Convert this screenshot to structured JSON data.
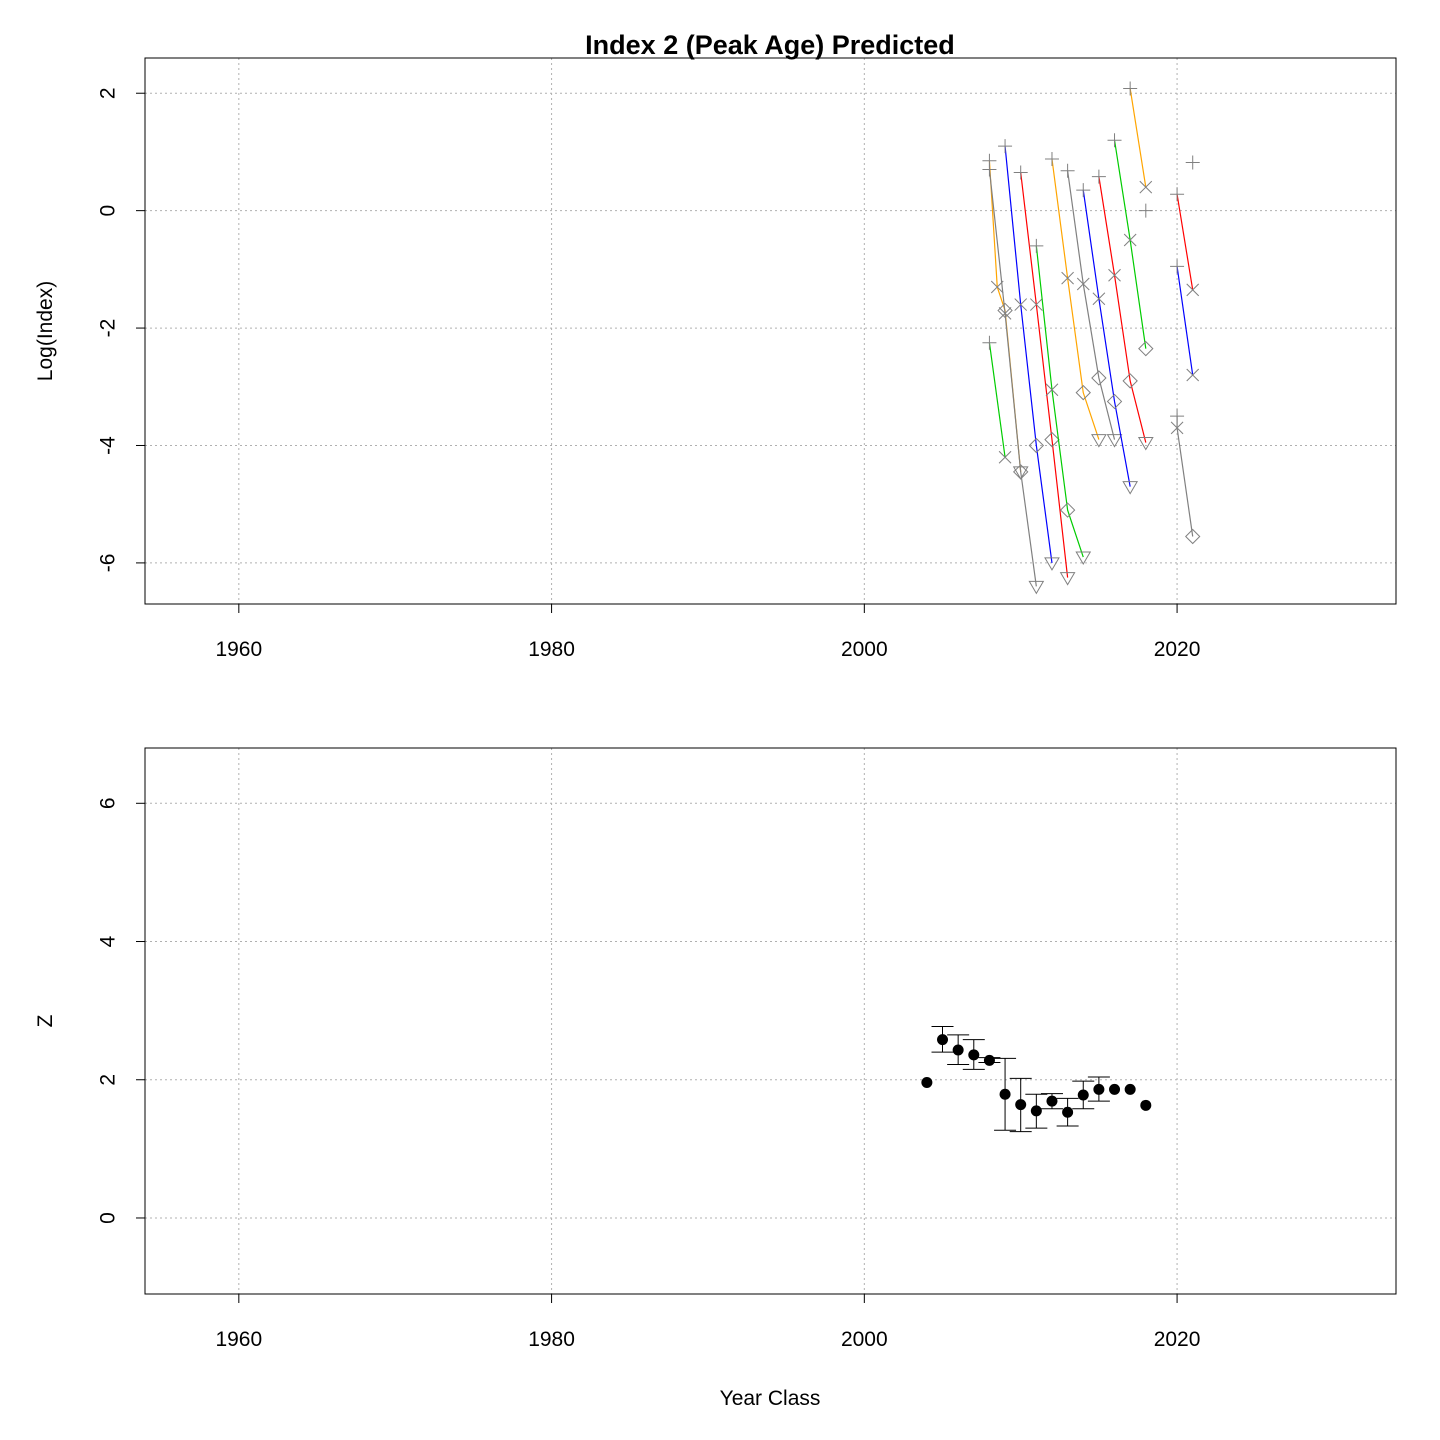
{
  "chart_data": [
    {
      "type": "line",
      "title": "Index 2 (Peak Age) Predicted",
      "xlabel": "",
      "ylabel": "Log(Index)",
      "xlim": [
        1954,
        2034
      ],
      "ylim": [
        -6.7,
        2.6
      ],
      "xticks": [
        1960,
        1980,
        2000,
        2020
      ],
      "yticks": [
        2,
        0,
        -2,
        -4,
        -6
      ],
      "grid": true,
      "marker_legend": [
        {
          "marker": "plus",
          "meaning": "first point of cohort"
        },
        {
          "marker": "x",
          "meaning": "second point"
        },
        {
          "marker": "diamond",
          "meaning": "third point"
        },
        {
          "marker": "triangle-down",
          "meaning": "fourth point"
        }
      ],
      "series": [
        {
          "color": "#FFA500",
          "points": [
            [
              2008,
              0.85
            ],
            [
              2008.5,
              -1.3
            ],
            [
              2009,
              -1.7
            ],
            [
              2010,
              -4.45
            ]
          ]
        },
        {
          "color": "#808080",
          "points": [
            [
              2008,
              0.7
            ],
            [
              2009,
              -1.75
            ],
            [
              2010,
              -4.45
            ],
            [
              2011,
              -6.4
            ]
          ]
        },
        {
          "color": "#00CC00",
          "points": [
            [
              2008,
              -2.25
            ],
            [
              2009,
              -4.2
            ]
          ]
        },
        {
          "color": "#0000FF",
          "points": [
            [
              2009,
              1.1
            ],
            [
              2010,
              -1.6
            ],
            [
              2011,
              -4.0
            ],
            [
              2012,
              -6.0
            ]
          ]
        },
        {
          "color": "#FF0000",
          "points": [
            [
              2010,
              0.65
            ],
            [
              2011,
              -1.6
            ],
            [
              2012,
              -3.9
            ],
            [
              2013,
              -6.25
            ]
          ]
        },
        {
          "color": "#00CC00",
          "points": [
            [
              2011,
              -0.6
            ],
            [
              2012,
              -3.05
            ],
            [
              2013,
              -5.1
            ],
            [
              2014,
              -5.9
            ]
          ]
        },
        {
          "color": "#FFA500",
          "points": [
            [
              2012,
              0.88
            ],
            [
              2013,
              -1.15
            ],
            [
              2014,
              -3.1
            ],
            [
              2015,
              -3.9
            ]
          ]
        },
        {
          "color": "#808080",
          "points": [
            [
              2013,
              0.68
            ],
            [
              2014,
              -1.25
            ],
            [
              2015,
              -2.85
            ],
            [
              2016,
              -3.9
            ]
          ]
        },
        {
          "color": "#0000FF",
          "points": [
            [
              2014,
              0.35
            ],
            [
              2015,
              -1.5
            ],
            [
              2016,
              -3.25
            ],
            [
              2017,
              -4.7
            ]
          ]
        },
        {
          "color": "#FF0000",
          "points": [
            [
              2015,
              0.58
            ],
            [
              2016,
              -1.1
            ],
            [
              2017,
              -2.9
            ],
            [
              2018,
              -3.95
            ]
          ]
        },
        {
          "color": "#00CC00",
          "points": [
            [
              2016,
              1.2
            ],
            [
              2017,
              -0.5
            ],
            [
              2018,
              -2.35
            ]
          ]
        },
        {
          "color": "#FFA500",
          "points": [
            [
              2017,
              2.08
            ],
            [
              2018,
              0.4
            ]
          ]
        },
        {
          "color": "#808080",
          "points": [
            [
              2018,
              0.0
            ]
          ]
        },
        {
          "color": "#FF0000",
          "points": [
            [
              2020,
              0.28
            ],
            [
              2021,
              -1.35
            ]
          ]
        },
        {
          "color": "#0000FF",
          "points": [
            [
              2020,
              -0.95
            ],
            [
              2021,
              -2.8
            ]
          ]
        },
        {
          "color": "#808080",
          "points": [
            [
              2020,
              -3.5
            ],
            [
              2020,
              -3.7
            ],
            [
              2021,
              -5.55
            ]
          ]
        },
        {
          "color": "#808080",
          "points": [
            [
              2021,
              0.82
            ]
          ]
        }
      ]
    },
    {
      "type": "scatter",
      "title": "",
      "xlabel": "Year Class",
      "ylabel": "Z",
      "xlim": [
        1954,
        2034
      ],
      "ylim": [
        -1.1,
        6.8
      ],
      "xticks": [
        1960,
        1980,
        2000,
        2020
      ],
      "yticks": [
        0,
        2,
        4,
        6
      ],
      "grid": true,
      "points": [
        {
          "x": 2004,
          "y": 1.96,
          "lo": null,
          "hi": null
        },
        {
          "x": 2005,
          "y": 2.58,
          "lo": 2.4,
          "hi": 2.77
        },
        {
          "x": 2006,
          "y": 2.43,
          "lo": 2.22,
          "hi": 2.65
        },
        {
          "x": 2007,
          "y": 2.36,
          "lo": 2.15,
          "hi": 2.58
        },
        {
          "x": 2008,
          "y": 2.28,
          "lo": 2.25,
          "hi": 2.32
        },
        {
          "x": 2009,
          "y": 1.79,
          "lo": 1.27,
          "hi": 2.31
        },
        {
          "x": 2010,
          "y": 1.64,
          "lo": 1.25,
          "hi": 2.02
        },
        {
          "x": 2011,
          "y": 1.55,
          "lo": 1.3,
          "hi": 1.79
        },
        {
          "x": 2012,
          "y": 1.69,
          "lo": 1.58,
          "hi": 1.8
        },
        {
          "x": 2013,
          "y": 1.53,
          "lo": 1.33,
          "hi": 1.73
        },
        {
          "x": 2014,
          "y": 1.78,
          "lo": 1.58,
          "hi": 1.98
        },
        {
          "x": 2015,
          "y": 1.86,
          "lo": 1.69,
          "hi": 2.04
        },
        {
          "x": 2016,
          "y": 1.86,
          "lo": null,
          "hi": null
        },
        {
          "x": 2017,
          "y": 1.86,
          "lo": null,
          "hi": null
        },
        {
          "x": 2018,
          "y": 1.63,
          "lo": null,
          "hi": null
        }
      ]
    }
  ]
}
